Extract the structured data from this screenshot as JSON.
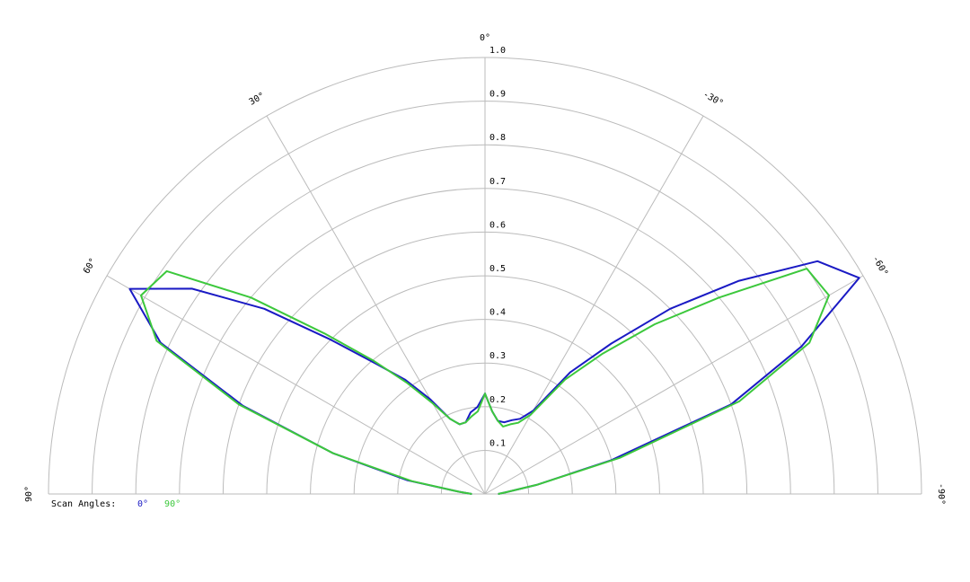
{
  "chart_data": {
    "type": "polar",
    "x": [
      -90,
      -85,
      -80,
      -75,
      -70,
      -65,
      -60,
      -55,
      -50,
      -45,
      -40,
      -35,
      -30,
      -25,
      -20,
      -15,
      -10,
      -5,
      0,
      5,
      10,
      15,
      20,
      25,
      30,
      35,
      40,
      45,
      50,
      55,
      60,
      65,
      70,
      75,
      80,
      85,
      90
    ],
    "series": [
      {
        "name": "0°",
        "color": "#1a1ac4",
        "values": [
          0.03,
          0.05,
          0.12,
          0.3,
          0.6,
          0.8,
          0.99,
          0.93,
          0.76,
          0.6,
          0.45,
          0.34,
          0.22,
          0.19,
          0.18,
          0.17,
          0.17,
          0.19,
          0.23,
          0.2,
          0.19,
          0.17,
          0.17,
          0.19,
          0.25,
          0.32,
          0.39,
          0.5,
          0.66,
          0.82,
          0.94,
          0.82,
          0.59,
          0.36,
          0.18,
          0.06,
          0.03
        ]
      },
      {
        "name": "90°",
        "color": "#3cc83c",
        "values": [
          0.03,
          0.05,
          0.12,
          0.32,
          0.62,
          0.82,
          0.91,
          0.9,
          0.7,
          0.55,
          0.42,
          0.32,
          0.21,
          0.18,
          0.17,
          0.16,
          0.17,
          0.19,
          0.23,
          0.19,
          0.18,
          0.17,
          0.17,
          0.19,
          0.24,
          0.31,
          0.4,
          0.52,
          0.7,
          0.89,
          0.91,
          0.83,
          0.6,
          0.36,
          0.17,
          0.06,
          0.03
        ]
      }
    ],
    "legend_title": "Scan Angles:",
    "rlim": [
      0,
      1
    ],
    "rticks": [
      0.1,
      0.2,
      0.3,
      0.4,
      0.5,
      0.6,
      0.7,
      0.8,
      0.9,
      {
        "value": 1,
        "label": "1.0"
      }
    ],
    "thetaticks": [
      {
        "value": 0,
        "label": "0°"
      },
      {
        "value": 30,
        "label": "30°"
      },
      {
        "value": -30,
        "label": "-30°"
      },
      {
        "value": 60,
        "label": "60°"
      },
      {
        "value": -60,
        "label": "-60°"
      },
      {
        "value": 90,
        "label": "90°"
      },
      {
        "value": -90,
        "label": "-90°"
      }
    ],
    "grid": true
  }
}
